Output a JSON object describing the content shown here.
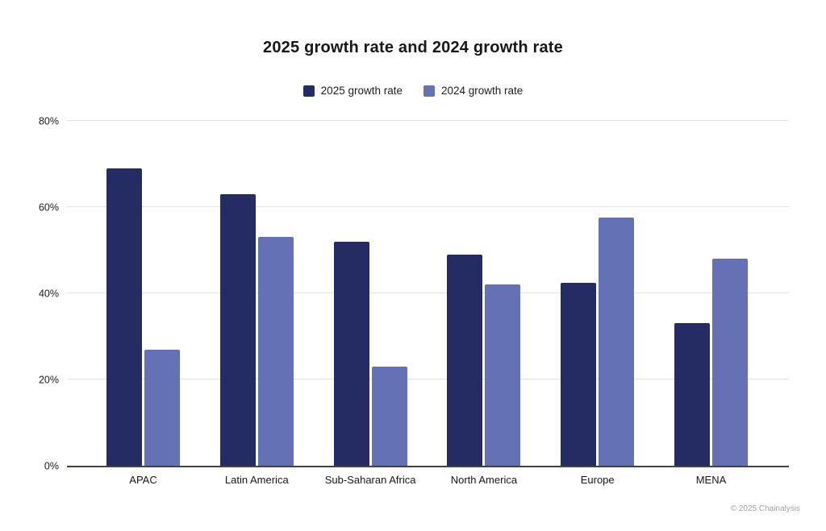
{
  "footer": "© 2025 Chainalysis",
  "chart_data": {
    "type": "bar",
    "title": "2025 growth rate and 2024 growth rate",
    "categories": [
      "APAC",
      "Latin America",
      "Sub-Saharan Africa",
      "North America",
      "Europe",
      "MENA"
    ],
    "series": [
      {
        "name": "2025 growth rate",
        "color": "#252c63",
        "values": [
          69,
          63,
          52,
          49,
          42.5,
          33
        ]
      },
      {
        "name": "2024 growth rate",
        "color": "#6471b4",
        "values": [
          27,
          53,
          23,
          42,
          57.5,
          48
        ]
      }
    ],
    "xlabel": "",
    "ylabel": "",
    "ylim": [
      0,
      80
    ],
    "yticks": [
      0,
      20,
      40,
      60,
      80
    ],
    "ytick_labels": [
      "0%",
      "20%",
      "40%",
      "60%",
      "80%"
    ],
    "grid": true,
    "grid_color": "#e2e2e2",
    "axis_color": "#40424a",
    "legend_position": "top"
  }
}
